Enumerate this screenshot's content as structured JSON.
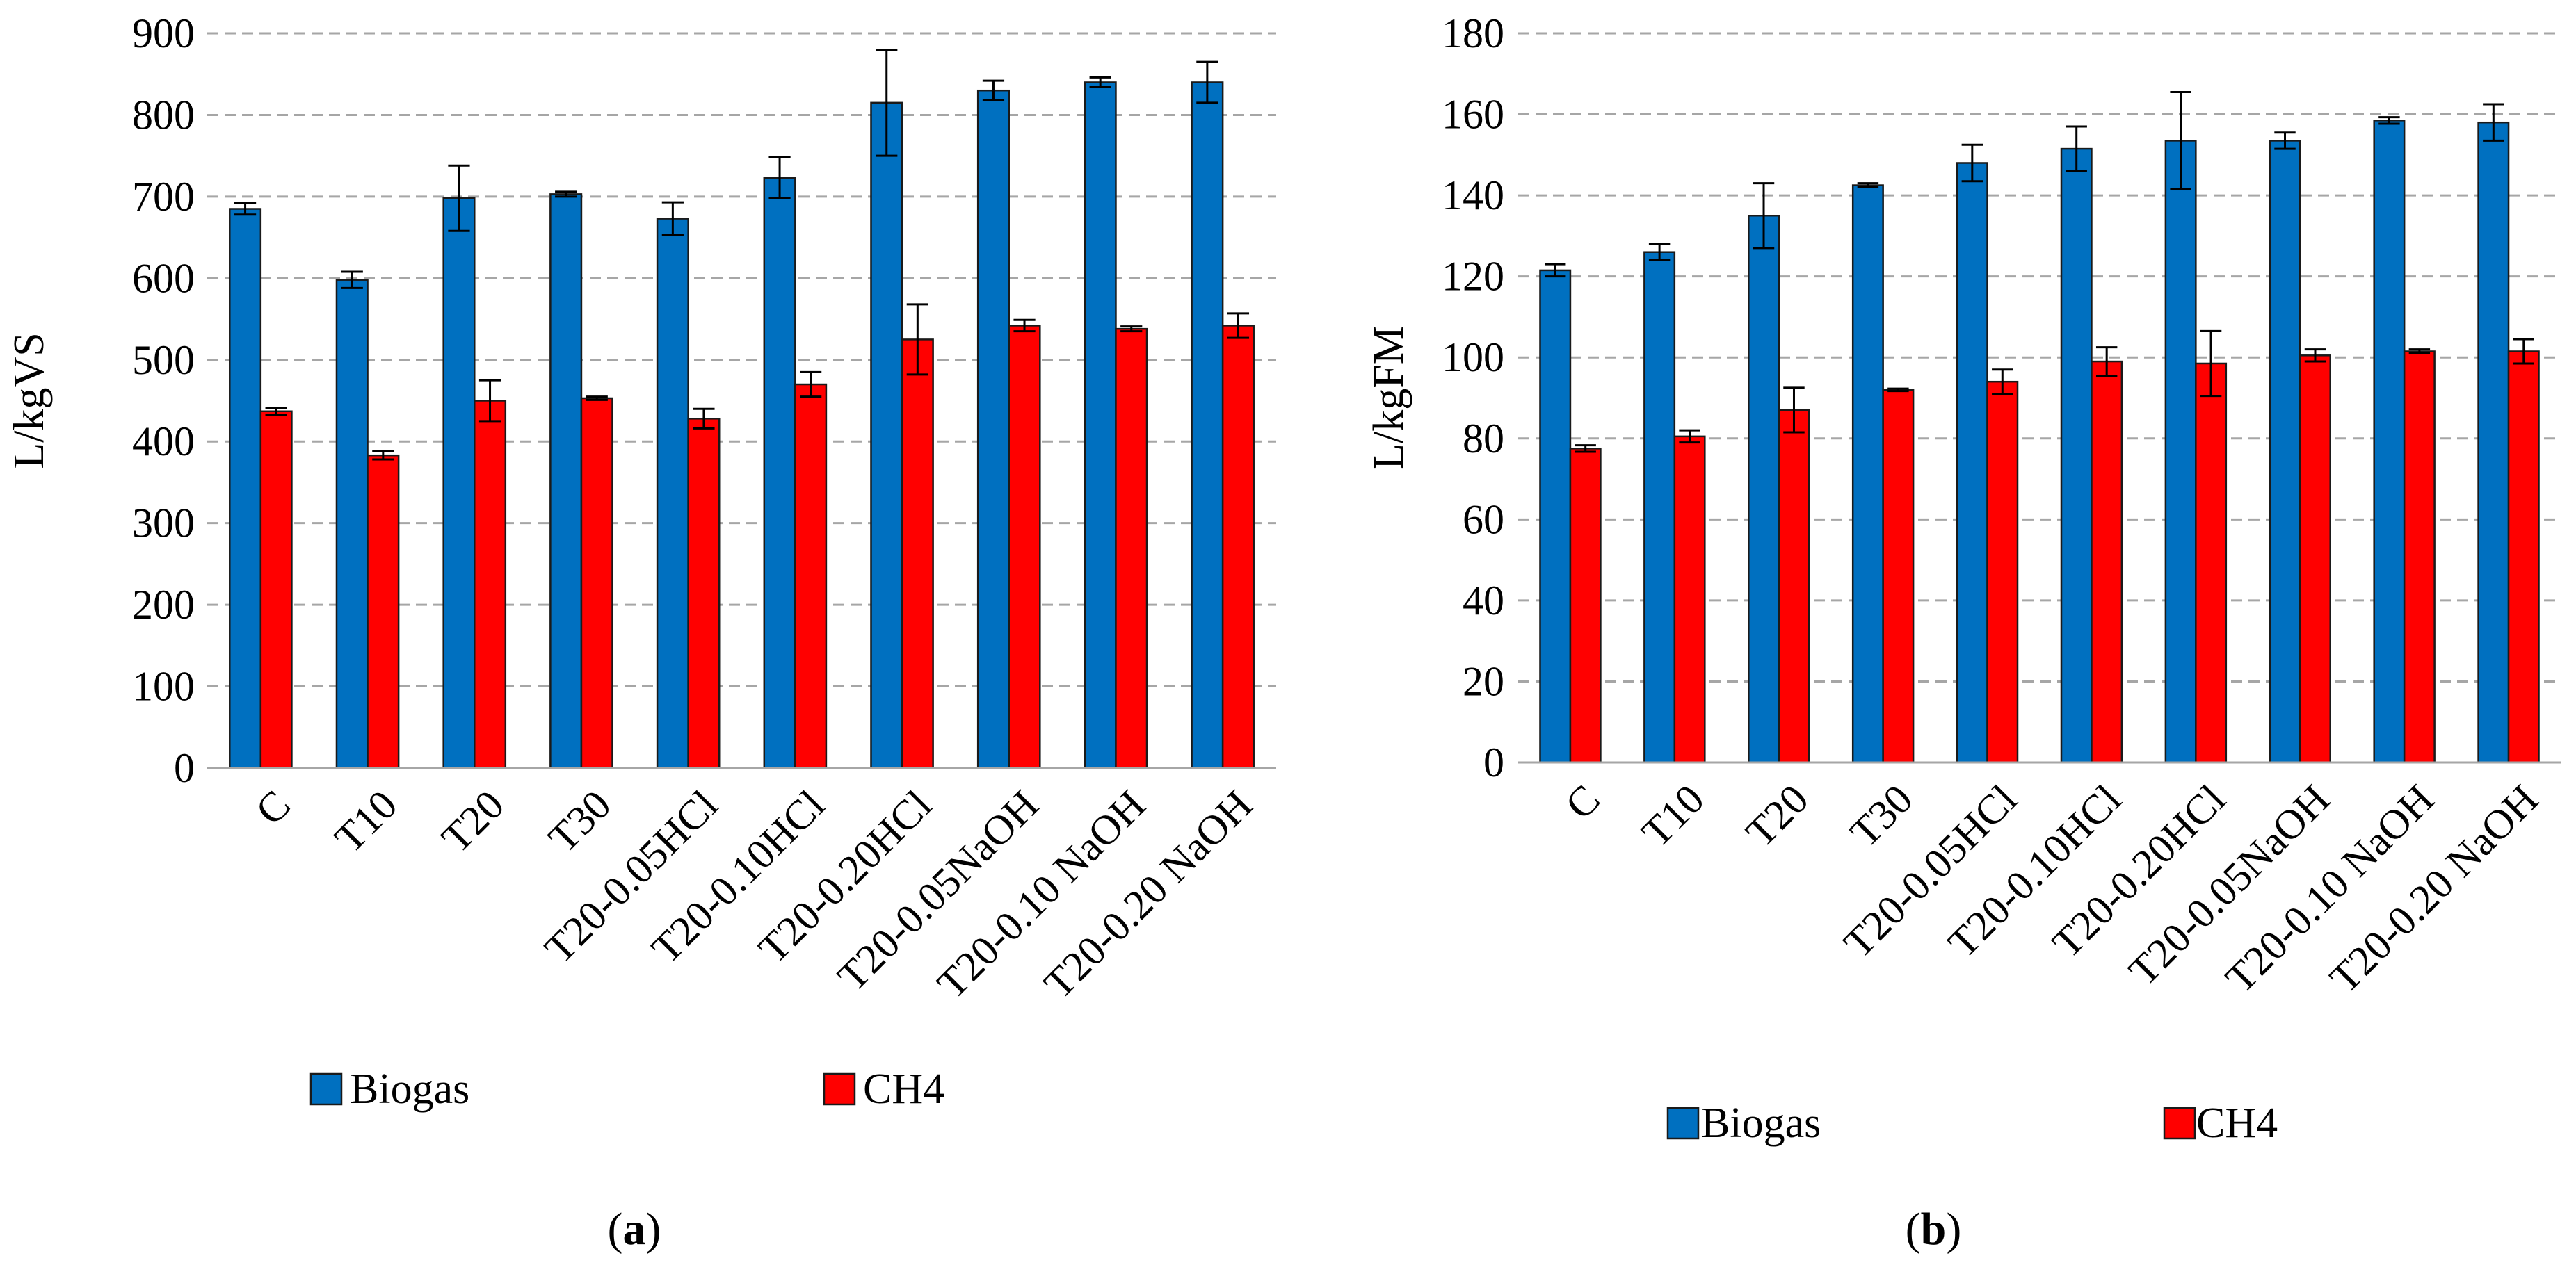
{
  "chart_data": [
    {
      "type": "bar",
      "panel_label": {
        "open": "(",
        "letter": "a",
        "close": ")"
      },
      "ylabel": "L/kgVS",
      "ylim": [
        0,
        900
      ],
      "ytick_step": 100,
      "yticks": [
        "0",
        "100",
        "200",
        "300",
        "400",
        "500",
        "600",
        "700",
        "800",
        "900"
      ],
      "grid": true,
      "legend_position": "bottom",
      "categories": [
        "C",
        "T10",
        "T20",
        "T30",
        "T20-0.05HCl",
        "T20-0.10HCl",
        "T20-0.20HCl",
        "T20-0.05NaOH",
        "T20-0.10 NaOH",
        "T20-0.20 NaOH"
      ],
      "series": [
        {
          "name": "Biogas",
          "color": "#0070C0",
          "values": [
            685,
            598,
            698,
            703,
            673,
            723,
            815,
            830,
            840,
            840
          ],
          "errors": [
            7,
            10,
            40,
            3,
            20,
            25,
            65,
            12,
            6,
            25
          ]
        },
        {
          "name": "CH4",
          "color": "#FF0000",
          "values": [
            437,
            383,
            450,
            453,
            428,
            470,
            525,
            542,
            538,
            542
          ],
          "errors": [
            4,
            5,
            25,
            2,
            12,
            15,
            43,
            7,
            3,
            15
          ]
        }
      ]
    },
    {
      "type": "bar",
      "panel_label": {
        "open": "(",
        "letter": "b",
        "close": ")"
      },
      "ylabel": "L/kgFM",
      "ylim": [
        0,
        180
      ],
      "ytick_step": 20,
      "yticks": [
        "0",
        "20",
        "40",
        "60",
        "80",
        "100",
        "120",
        "140",
        "160",
        "180"
      ],
      "grid": true,
      "legend_position": "bottom",
      "categories": [
        "C",
        "T10",
        "T20",
        "T30",
        "T20-0.05HCl",
        "T20-0.10HCl",
        "T20-0.20HCl",
        "T20-0.05NaOH",
        "T20-0.10 NaOH",
        "T20-0.20 NaOH"
      ],
      "series": [
        {
          "name": "Biogas",
          "color": "#0070C0",
          "values": [
            121.5,
            126,
            135,
            142.5,
            148,
            151.5,
            153.5,
            153.5,
            158.5,
            158
          ],
          "errors": [
            1.5,
            2,
            8,
            0.5,
            4.5,
            5.5,
            12,
            2,
            0.8,
            4.5
          ]
        },
        {
          "name": "CH4",
          "color": "#FF0000",
          "values": [
            77.5,
            80.5,
            87,
            92,
            94,
            99,
            98.5,
            100.5,
            101.5,
            101.5
          ],
          "errors": [
            0.8,
            1.5,
            5.5,
            0.3,
            3,
            3.5,
            8,
            1.5,
            0.5,
            3
          ]
        }
      ]
    }
  ]
}
